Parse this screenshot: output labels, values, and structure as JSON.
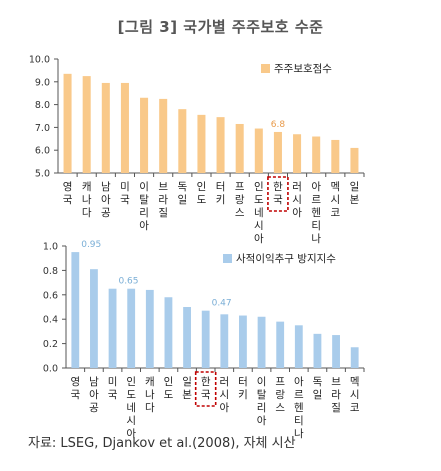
{
  "page": {
    "title": "[그림 3] 국가별 주주보호 수준",
    "source": "자료: LSEG, Djankov et al.(2008), 자체 시산"
  },
  "colors": {
    "chart1_bar": "#F9C98A",
    "chart2_bar": "#A9CCEB",
    "label_orange": "#E89A4A",
    "label_blue": "#7AAED6",
    "highlight": "#C00000",
    "axis": "#555555"
  },
  "chart_data": [
    {
      "type": "bar",
      "categories": [
        "영국",
        "캐나다",
        "남아공",
        "미국",
        "이탈리아",
        "브라질",
        "독일",
        "인도",
        "터키",
        "프랑스",
        "인도네시아",
        "한국",
        "러시아",
        "아르헨티나",
        "멕시코",
        "일본"
      ],
      "series": [
        {
          "name": "주주보호점수",
          "values": [
            9.35,
            9.25,
            8.95,
            8.95,
            8.3,
            8.25,
            7.8,
            7.55,
            7.45,
            7.15,
            6.95,
            6.8,
            6.7,
            6.6,
            6.45,
            6.1
          ]
        }
      ],
      "ylim": [
        5.0,
        10.0
      ],
      "yticks": [
        "5.0",
        "6.0",
        "7.0",
        "8.0",
        "9.0",
        "10.0"
      ],
      "data_labels": [
        {
          "category": "한국",
          "text": "6.8"
        }
      ],
      "highlight": "한국",
      "legend": "top-right",
      "grid": false
    },
    {
      "type": "bar",
      "categories": [
        "영국",
        "남아공",
        "미국",
        "인도네시아",
        "캐나다",
        "인도",
        "일본",
        "한국",
        "러시아",
        "터키",
        "이탈리아",
        "프랑스",
        "아르헨티나",
        "독일",
        "브라질",
        "멕시코"
      ],
      "series": [
        {
          "name": "사적이익추구 방지지수",
          "values": [
            0.95,
            0.81,
            0.65,
            0.65,
            0.64,
            0.58,
            0.5,
            0.47,
            0.44,
            0.43,
            0.42,
            0.38,
            0.35,
            0.28,
            0.27,
            0.17
          ]
        }
      ],
      "ylim": [
        0.0,
        1.0
      ],
      "yticks": [
        "0.0",
        "0.2",
        "0.4",
        "0.6",
        "0.8",
        "1.0"
      ],
      "data_labels": [
        {
          "category": "영국",
          "text": "0.95"
        },
        {
          "category": "미국",
          "text": "0.65"
        },
        {
          "category": "한국",
          "text": "0.47"
        }
      ],
      "highlight": "한국",
      "legend": "top-right",
      "grid": false
    }
  ]
}
